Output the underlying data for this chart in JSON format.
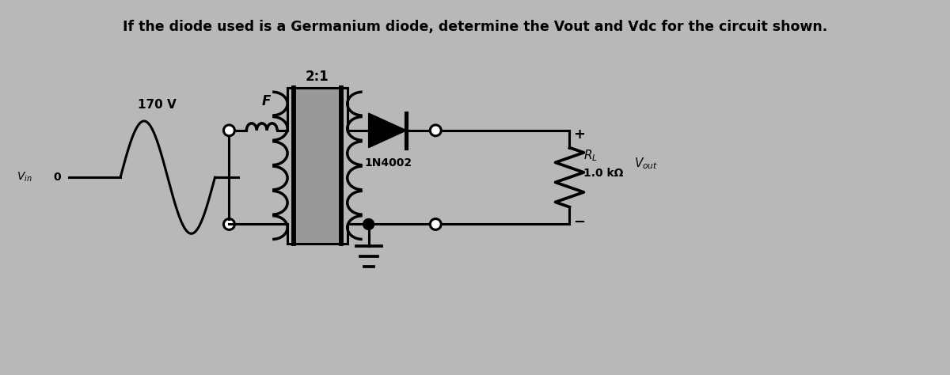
{
  "title": "If the diode used is a Germanium diode, determine the Vout and Vdc for the circuit shown.",
  "title_fontsize": 12.5,
  "bg_color": "#b8b8b8",
  "text_color": "#000000",
  "transformer_ratio": "2:1",
  "voltage": "170 V",
  "diode_label": "1N4002",
  "rl_value": "1.0 kΩ",
  "fuse_label": "F",
  "lw": 2.2,
  "coil_lw": 2.5
}
